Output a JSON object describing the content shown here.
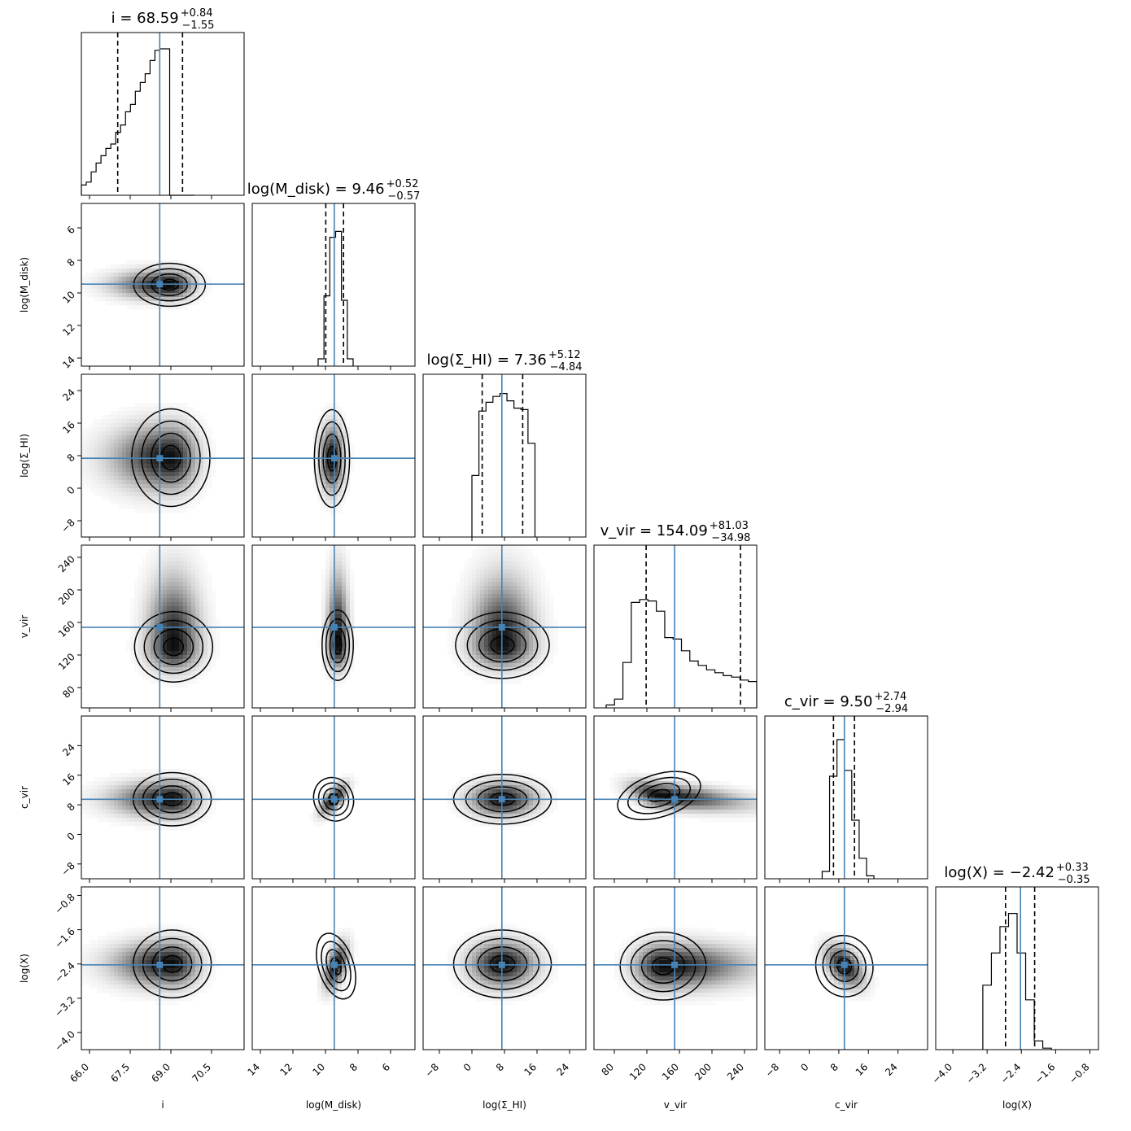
{
  "chart_data": {
    "type": "corner",
    "truth_color": "#4682b4",
    "params": [
      {
        "id": "i",
        "title_main": "i = 68.59",
        "title_plus": "+0.84",
        "title_minus": "−1.55",
        "label": "i",
        "median": 68.59,
        "q_lo": 67.04,
        "q_hi": 69.43,
        "truth": 68.59,
        "range": [
          65.7,
          71.7
        ],
        "ticks": [
          66.0,
          67.5,
          69.0,
          70.5
        ],
        "tick_labels": [
          "66.0",
          "67.5",
          "69.0",
          "70.5"
        ],
        "reverse": false,
        "hist": [
          0.07,
          0.09,
          0.16,
          0.22,
          0.27,
          0.32,
          0.35,
          0.43,
          0.48,
          0.57,
          0.62,
          0.71,
          0.77,
          0.83,
          0.92,
          0.99,
          1.0,
          1.0,
          0.0,
          0.0,
          0.0,
          0.0,
          0.0
        ]
      },
      {
        "id": "logMdisk",
        "title_main": "log(M_disk) = 9.46",
        "title_plus": "+0.52",
        "title_minus": "−0.57",
        "label": "log(M_disk)",
        "median": 9.46,
        "q_lo": 8.89,
        "q_hi": 9.98,
        "truth": 9.46,
        "range": [
          14.5,
          4.5
        ],
        "ticks": [
          14,
          12,
          10,
          8,
          6
        ],
        "tick_labels": [
          "14",
          "12",
          "10",
          "8",
          "6"
        ],
        "reverse": true,
        "hist": [
          0.05,
          0.48,
          0.88,
          0.92,
          0.45,
          0.05
        ]
      },
      {
        "id": "logSigmaHI",
        "title_main": "log(Σ_HI) = 7.36",
        "title_plus": "+5.12",
        "title_minus": "−4.84",
        "label": "log(Σ_HI)",
        "median": 7.36,
        "q_lo": 2.52,
        "q_hi": 12.48,
        "truth": 7.36,
        "range": [
          -12,
          28
        ],
        "ticks": [
          -8,
          0,
          8,
          16,
          24
        ],
        "tick_labels": [
          "−8",
          "0",
          "8",
          "16",
          "24"
        ],
        "reverse": false,
        "hist": [
          0.42,
          0.86,
          0.92,
          0.96,
          0.98,
          0.93,
          0.88,
          0.87,
          0.64
        ]
      },
      {
        "id": "vvir",
        "title_main": "v_vir = 154.09",
        "title_plus": "+81.03",
        "title_minus": "−34.98",
        "label": "v_vir",
        "median": 154.09,
        "q_lo": 119.11,
        "q_hi": 235.12,
        "truth": 154.09,
        "range": [
          55,
          255
        ],
        "ticks": [
          80,
          120,
          160,
          200,
          240
        ],
        "tick_labels": [
          "80",
          "120",
          "160",
          "200",
          "240"
        ],
        "reverse": false,
        "hist": [
          0.02,
          0.06,
          0.31,
          0.72,
          0.74,
          0.73,
          0.66,
          0.48,
          0.47,
          0.39,
          0.32,
          0.29,
          0.26,
          0.24,
          0.22,
          0.21,
          0.19,
          0.18
        ]
      },
      {
        "id": "cvir",
        "title_main": "c_vir = 9.50",
        "title_plus": "+2.74",
        "title_minus": "−2.94",
        "label": "c_vir",
        "median": 9.5,
        "q_lo": 6.56,
        "q_hi": 12.24,
        "truth": 9.5,
        "range": [
          -12,
          32
        ],
        "ticks": [
          -8,
          0,
          8,
          16,
          24
        ],
        "tick_labels": [
          "−8",
          "0",
          "8",
          "16",
          "24"
        ],
        "reverse": false,
        "hist": [
          0.05,
          0.7,
          0.95,
          0.74,
          0.4,
          0.14,
          0.02
        ]
      },
      {
        "id": "logX",
        "title_main": "log(X) = −2.42",
        "title_plus": "+0.33",
        "title_minus": "−0.35",
        "label": "log(X)",
        "median": -2.42,
        "q_lo": -2.77,
        "q_hi": -2.09,
        "truth": -2.42,
        "range": [
          -4.4,
          -0.6
        ],
        "ticks": [
          -4.0,
          -3.2,
          -2.4,
          -1.6,
          -0.8
        ],
        "tick_labels": [
          "−4.0",
          "−3.2",
          "−2.4",
          "−1.6",
          "−0.8"
        ],
        "reverse": false,
        "hist": [
          0.44,
          0.66,
          0.84,
          0.93,
          0.66,
          0.34,
          0.06,
          0.01
        ]
      }
    ],
    "hist_ranges": {
      "i": [
        65.7,
        69.86
      ],
      "logMdisk": [
        10.45,
        8.3
      ],
      "logSigmaHI": [
        0,
        15.5
      ],
      "vvir": [
        70,
        255
      ],
      "cvir": [
        3.5,
        17.5
      ],
      "logX": [
        -3.3,
        -1.7
      ]
    },
    "blobs": {
      "i|logMdisk": [
        {
          "cx": 68.95,
          "cy": 9.5,
          "sx": 0.55,
          "sy": 0.55,
          "w": 1,
          "tail": "left"
        }
      ],
      "i|logSigmaHI": [
        {
          "cx": 69.0,
          "cy": 7.5,
          "sx": 0.6,
          "sy": 5.0,
          "w": 1,
          "tail": "left"
        }
      ],
      "i|vvir": [
        {
          "cx": 69.1,
          "cy": 130,
          "sx": 0.6,
          "sy": 18,
          "w": 1,
          "tail": "up"
        }
      ],
      "i|cvir": [
        {
          "cx": 69.05,
          "cy": 9.5,
          "sx": 0.6,
          "sy": 3.0,
          "w": 1,
          "tail": "left"
        }
      ],
      "i|logX": [
        {
          "cx": 69.05,
          "cy": -2.4,
          "sx": 0.6,
          "sy": 0.33,
          "w": 1,
          "tail": "left"
        }
      ],
      "logMdisk|logSigmaHI": [
        {
          "cx": 9.6,
          "cy": 7.3,
          "sx": 0.45,
          "sy": 5.0,
          "w": 1
        }
      ],
      "logMdisk|vvir": [
        {
          "cx": 9.25,
          "cy": 132,
          "sx": 0.4,
          "sy": 18,
          "w": 1,
          "tail": "up"
        }
      ],
      "logMdisk|cvir": [
        {
          "cx": 9.5,
          "cy": 9.5,
          "sx": 0.5,
          "sy": 2.5,
          "w": 1,
          "rho": -0.7
        }
      ],
      "logMdisk|logX": [
        {
          "cx": 9.35,
          "cy": -2.45,
          "sx": 0.45,
          "sy": 0.33,
          "w": 1,
          "rho": -0.5
        }
      ],
      "logSigmaHI|vvir": [
        {
          "cx": 7.5,
          "cy": 132,
          "sx": 4.8,
          "sy": 17,
          "w": 1,
          "tail": "up"
        }
      ],
      "logSigmaHI|cvir": [
        {
          "cx": 7.5,
          "cy": 9.5,
          "sx": 5.0,
          "sy": 2.8,
          "w": 1
        }
      ],
      "logSigmaHI|logX": [
        {
          "cx": 7.5,
          "cy": -2.4,
          "sx": 5.0,
          "sy": 0.33,
          "w": 1
        }
      ],
      "vvir|cvir": [
        {
          "cx": 135,
          "cy": 10.5,
          "sx": 22,
          "sy": 2.4,
          "w": 1,
          "rho": -0.5,
          "tail": "right"
        }
      ],
      "vvir|logX": [
        {
          "cx": 140,
          "cy": -2.45,
          "sx": 22,
          "sy": 0.33,
          "w": 1,
          "tail": "right"
        }
      ],
      "cvir|logX": [
        {
          "cx": 9.5,
          "cy": -2.45,
          "sx": 3.2,
          "sy": 0.3,
          "w": 1,
          "rho": -0.45
        }
      ]
    }
  }
}
